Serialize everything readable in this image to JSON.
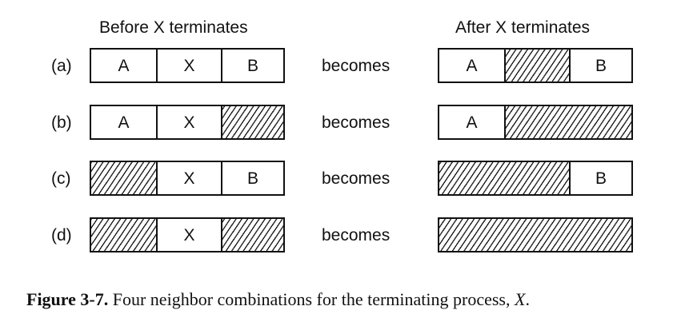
{
  "headings": {
    "before": "Before X terminates",
    "after": "After X terminates"
  },
  "rows": [
    {
      "label": "(a)",
      "becomes": "becomes",
      "before": [
        {
          "kind": "process",
          "label": "A"
        },
        {
          "kind": "process",
          "label": "X"
        },
        {
          "kind": "process",
          "label": "B"
        }
      ],
      "after": [
        {
          "kind": "process",
          "label": "A"
        },
        {
          "kind": "hole",
          "label": ""
        },
        {
          "kind": "process",
          "label": "B"
        }
      ]
    },
    {
      "label": "(b)",
      "becomes": "becomes",
      "before": [
        {
          "kind": "process",
          "label": "A"
        },
        {
          "kind": "process",
          "label": "X"
        },
        {
          "kind": "hole",
          "label": ""
        }
      ],
      "after": [
        {
          "kind": "process",
          "label": "A"
        },
        {
          "kind": "hole",
          "label": ""
        }
      ]
    },
    {
      "label": "(c)",
      "becomes": "becomes",
      "before": [
        {
          "kind": "hole",
          "label": ""
        },
        {
          "kind": "process",
          "label": "X"
        },
        {
          "kind": "process",
          "label": "B"
        }
      ],
      "after": [
        {
          "kind": "hole",
          "label": ""
        },
        {
          "kind": "process",
          "label": "B"
        }
      ]
    },
    {
      "label": "(d)",
      "becomes": "becomes",
      "before": [
        {
          "kind": "hole",
          "label": ""
        },
        {
          "kind": "process",
          "label": "X"
        },
        {
          "kind": "hole",
          "label": ""
        }
      ],
      "after": [
        {
          "kind": "hole",
          "label": ""
        }
      ]
    }
  ],
  "caption": {
    "number": "Figure 3-7.",
    "text": "Four neighbor combinations for the terminating process,",
    "variable": "X",
    "end": "."
  }
}
